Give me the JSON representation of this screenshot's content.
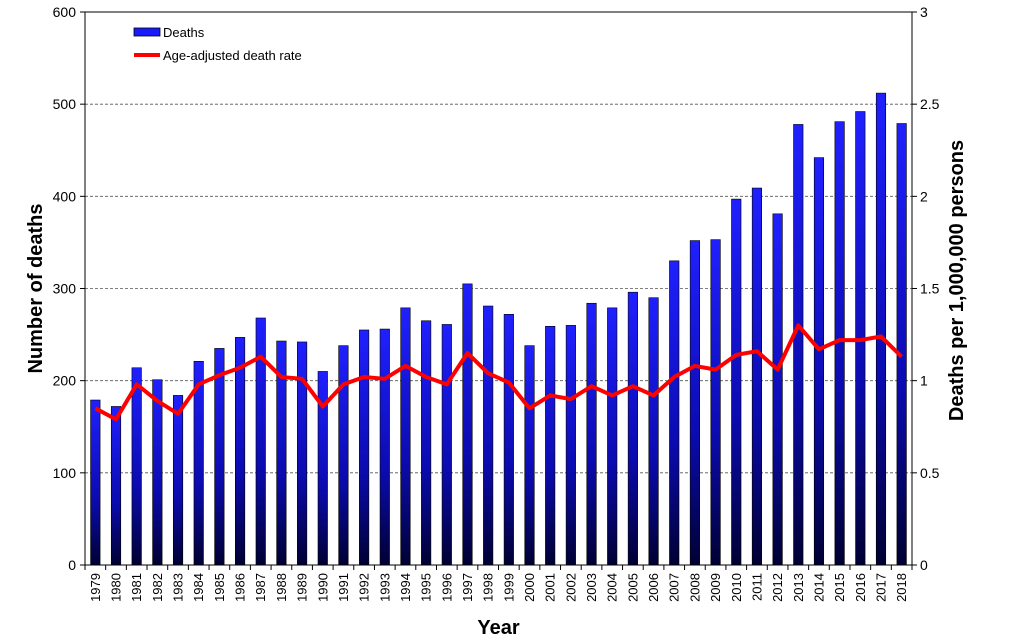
{
  "chart_data": {
    "type": "bar",
    "categories": [
      "1979",
      "1980",
      "1981",
      "1982",
      "1983",
      "1984",
      "1985",
      "1986",
      "1987",
      "1988",
      "1989",
      "1990",
      "1991",
      "1992",
      "1993",
      "1994",
      "1995",
      "1996",
      "1997",
      "1998",
      "1999",
      "2000",
      "2001",
      "2002",
      "2003",
      "2004",
      "2005",
      "2006",
      "2007",
      "2008",
      "2009",
      "2010",
      "2011",
      "2012",
      "2013",
      "2014",
      "2015",
      "2016",
      "2017",
      "2018"
    ],
    "series": [
      {
        "name": "Deaths",
        "type": "bar",
        "axis": "left",
        "color": "#1a1aff",
        "values": [
          179,
          172,
          214,
          201,
          184,
          221,
          235,
          247,
          268,
          243,
          242,
          210,
          238,
          255,
          256,
          279,
          265,
          261,
          305,
          281,
          272,
          238,
          259,
          260,
          284,
          279,
          296,
          290,
          330,
          352,
          353,
          397,
          409,
          381,
          478,
          442,
          481,
          492,
          512,
          479
        ]
      },
      {
        "name": "Age-adjusted death rate",
        "type": "line",
        "axis": "right",
        "color": "#ff0000",
        "values": [
          0.85,
          0.79,
          0.98,
          0.89,
          0.82,
          0.98,
          1.03,
          1.07,
          1.13,
          1.02,
          1.01,
          0.86,
          0.98,
          1.02,
          1.01,
          1.08,
          1.02,
          0.98,
          1.15,
          1.04,
          0.99,
          0.85,
          0.92,
          0.9,
          0.97,
          0.92,
          0.97,
          0.92,
          1.02,
          1.08,
          1.06,
          1.14,
          1.16,
          1.06,
          1.3,
          1.17,
          1.22,
          1.22,
          1.24,
          1.13
        ]
      }
    ],
    "xlabel": "Year",
    "ylabel": "Number of deaths",
    "y2label": "Deaths per 1,000,000 persons",
    "ylim": [
      0,
      600
    ],
    "y2lim": [
      0,
      3
    ],
    "yticks": [
      "0",
      "100",
      "200",
      "300",
      "400",
      "500",
      "600"
    ],
    "y2ticks": [
      "0",
      "0.5",
      "1",
      "1.5",
      "2",
      "2.5",
      "3"
    ],
    "grid": true,
    "legend": "top-left"
  }
}
